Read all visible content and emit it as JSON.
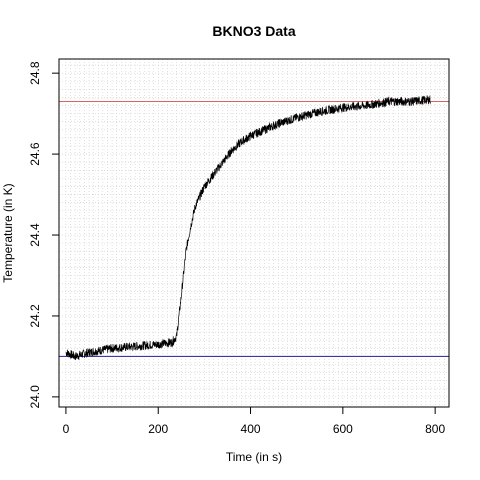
{
  "chart_data": {
    "type": "line",
    "title": "BKNO3 Data",
    "xlabel": "Time (in s)",
    "ylabel": "Temperature (in K)",
    "xlim": [
      -15,
      830
    ],
    "ylim": [
      23.975,
      24.835
    ],
    "x_ticks": [
      0,
      200,
      400,
      600,
      800
    ],
    "y_ticks": [
      24.0,
      24.2,
      24.4,
      24.6,
      24.8
    ],
    "x_tick_labels": [
      "0",
      "200",
      "400",
      "600",
      "800"
    ],
    "y_tick_labels": [
      "24.0",
      "24.2",
      "24.4",
      "24.6",
      "24.8"
    ],
    "grid": true,
    "grid_style": "dotted",
    "reference_lines": [
      {
        "y": 24.73,
        "color": "#e06060"
      },
      {
        "y": 24.1,
        "color": "#2020a0"
      }
    ],
    "series": [
      {
        "color": "#000000",
        "x": [
          0,
          20,
          50,
          100,
          150,
          200,
          230,
          240,
          250,
          260,
          270,
          280,
          300,
          320,
          340,
          360,
          380,
          400,
          420,
          440,
          460,
          500,
          550,
          600,
          650,
          700,
          750,
          790
        ],
        "y": [
          24.11,
          24.1,
          24.11,
          24.12,
          24.125,
          24.13,
          24.135,
          24.15,
          24.25,
          24.36,
          24.42,
          24.47,
          24.52,
          24.55,
          24.58,
          24.61,
          24.63,
          24.645,
          24.655,
          24.665,
          24.675,
          24.69,
          24.705,
          24.715,
          24.72,
          24.73,
          24.73,
          24.735
        ]
      }
    ]
  }
}
